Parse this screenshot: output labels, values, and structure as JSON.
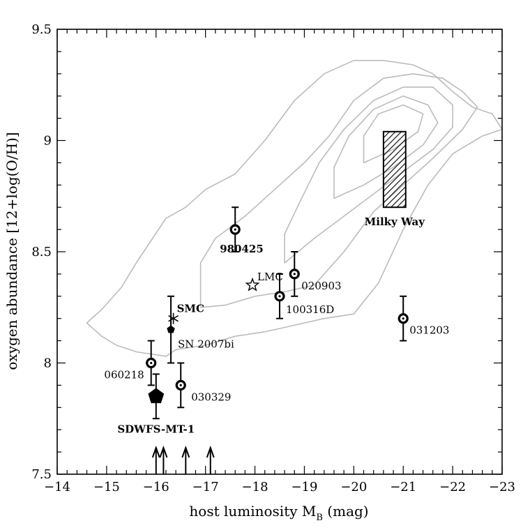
{
  "chart_data": {
    "type": "scatter",
    "xlabel": "host luminosity M",
    "xlabel_sub": "B",
    "xlabel_unit": " (mag)",
    "ylabel": "oxygen abundance [12+log(O/H)]",
    "xlim": [
      -14,
      -23
    ],
    "ylim": [
      7.5,
      9.5
    ],
    "x_ticks": [
      -14,
      -15,
      -16,
      -17,
      -18,
      -19,
      -20,
      -21,
      -22,
      -23
    ],
    "x_tick_labels": [
      "−14",
      "−15",
      "−16",
      "−17",
      "−18",
      "−19",
      "−20",
      "−21",
      "−22",
      "−23"
    ],
    "y_ticks": [
      7.5,
      8,
      8.5,
      9,
      9.5
    ],
    "y_tick_labels": [
      "7.5",
      "8",
      "8.5",
      "9",
      "9.5"
    ],
    "grid": false,
    "series": [
      {
        "marker": "circled-dot",
        "points": [
          {
            "label": "980425",
            "x": -17.6,
            "y": 8.6,
            "err": [
              8.5,
              8.7
            ]
          },
          {
            "label": "020903",
            "x": -18.8,
            "y": 8.4,
            "err": [
              8.3,
              8.5
            ]
          },
          {
            "label": "100316D",
            "x": -18.5,
            "y": 8.3,
            "err": [
              8.2,
              8.4
            ]
          },
          {
            "label": "031203",
            "x": -21.0,
            "y": 8.2,
            "err": [
              8.1,
              8.3
            ]
          },
          {
            "label": "060218",
            "x": -15.9,
            "y": 8.0,
            "err": [
              7.9,
              8.1
            ]
          },
          {
            "label": "030329",
            "x": -16.5,
            "y": 7.9,
            "err": [
              7.8,
              8.0
            ]
          }
        ]
      },
      {
        "marker": "open-star",
        "points": [
          {
            "label": "LMC",
            "x": -17.95,
            "y": 8.35
          }
        ]
      },
      {
        "marker": "asterisk",
        "points": [
          {
            "label": "SMC",
            "x": -16.35,
            "y": 8.2
          }
        ]
      },
      {
        "marker": "small-pentagon",
        "points": [
          {
            "label": "SN 2007bi",
            "x": -16.3,
            "y": 8.15,
            "err": [
              8.0,
              8.3
            ]
          }
        ]
      },
      {
        "marker": "large-pentagon",
        "points": [
          {
            "label": "SDWFS-MT-1",
            "x": -16.0,
            "y": 7.85,
            "err": [
              7.75,
              7.95
            ]
          }
        ]
      }
    ],
    "upper_limits_x": [
      -16.0,
      -16.15,
      -16.6,
      -17.1
    ],
    "milky_way": {
      "label": "Milky Way",
      "x_range": [
        -20.6,
        -21.05
      ],
      "y_range": [
        8.7,
        9.04
      ]
    },
    "contours": [
      {
        "level": 1,
        "points": [
          [
            -14.6,
            8.18
          ],
          [
            -14.9,
            8.12
          ],
          [
            -15.2,
            8.08
          ],
          [
            -15.6,
            8.05
          ],
          [
            -16.2,
            8.03
          ],
          [
            -16.4,
            8.06
          ],
          [
            -17.0,
            8.08
          ],
          [
            -17.6,
            8.12
          ],
          [
            -18.2,
            8.14
          ],
          [
            -18.6,
            8.16
          ],
          [
            -19.0,
            8.18
          ],
          [
            -19.4,
            8.2
          ],
          [
            -20.0,
            8.22
          ],
          [
            -20.5,
            8.36
          ],
          [
            -21.0,
            8.6
          ],
          [
            -21.5,
            8.8
          ],
          [
            -22.0,
            8.94
          ],
          [
            -22.6,
            9.02
          ],
          [
            -23.0,
            9.05
          ],
          [
            -22.8,
            9.12
          ],
          [
            -22.4,
            9.15
          ],
          [
            -22.0,
            9.22
          ],
          [
            -21.6,
            9.3
          ],
          [
            -21.2,
            9.34
          ],
          [
            -20.6,
            9.36
          ],
          [
            -20.0,
            9.36
          ],
          [
            -19.4,
            9.3
          ],
          [
            -18.8,
            9.18
          ],
          [
            -18.2,
            9.0
          ],
          [
            -17.6,
            8.85
          ],
          [
            -17.0,
            8.78
          ],
          [
            -16.6,
            8.7
          ],
          [
            -16.2,
            8.65
          ],
          [
            -15.9,
            8.55
          ],
          [
            -15.6,
            8.45
          ],
          [
            -15.3,
            8.34
          ],
          [
            -14.9,
            8.24
          ],
          [
            -14.6,
            8.18
          ]
        ]
      },
      {
        "level": 2,
        "points": [
          [
            -16.9,
            8.25
          ],
          [
            -17.4,
            8.26
          ],
          [
            -18.0,
            8.3
          ],
          [
            -18.6,
            8.32
          ],
          [
            -19.2,
            8.35
          ],
          [
            -19.8,
            8.5
          ],
          [
            -20.4,
            8.68
          ],
          [
            -21.0,
            8.8
          ],
          [
            -21.6,
            8.92
          ],
          [
            -22.2,
            9.05
          ],
          [
            -22.5,
            9.15
          ],
          [
            -22.2,
            9.22
          ],
          [
            -21.8,
            9.28
          ],
          [
            -21.2,
            9.3
          ],
          [
            -20.6,
            9.28
          ],
          [
            -20.0,
            9.18
          ],
          [
            -19.5,
            9.02
          ],
          [
            -19.0,
            8.9
          ],
          [
            -18.4,
            8.78
          ],
          [
            -17.8,
            8.66
          ],
          [
            -17.2,
            8.56
          ],
          [
            -16.9,
            8.45
          ],
          [
            -16.9,
            8.25
          ]
        ]
      },
      {
        "level": 3,
        "points": [
          [
            -18.6,
            8.45
          ],
          [
            -19.2,
            8.56
          ],
          [
            -19.8,
            8.66
          ],
          [
            -20.4,
            8.76
          ],
          [
            -21.0,
            8.86
          ],
          [
            -21.6,
            8.96
          ],
          [
            -22.0,
            9.06
          ],
          [
            -22.0,
            9.16
          ],
          [
            -21.6,
            9.24
          ],
          [
            -21.0,
            9.24
          ],
          [
            -20.4,
            9.18
          ],
          [
            -19.8,
            9.05
          ],
          [
            -19.3,
            8.9
          ],
          [
            -18.9,
            8.72
          ],
          [
            -18.6,
            8.58
          ],
          [
            -18.6,
            8.45
          ]
        ]
      },
      {
        "level": 4,
        "points": [
          [
            -19.6,
            8.74
          ],
          [
            -20.2,
            8.8
          ],
          [
            -20.8,
            8.88
          ],
          [
            -21.4,
            8.98
          ],
          [
            -21.7,
            9.08
          ],
          [
            -21.5,
            9.16
          ],
          [
            -21.0,
            9.2
          ],
          [
            -20.4,
            9.14
          ],
          [
            -19.9,
            9.02
          ],
          [
            -19.6,
            8.88
          ],
          [
            -19.6,
            8.74
          ]
        ]
      },
      {
        "level": 5,
        "points": [
          [
            -20.2,
            8.9
          ],
          [
            -20.8,
            8.96
          ],
          [
            -21.3,
            9.04
          ],
          [
            -21.4,
            9.12
          ],
          [
            -21.0,
            9.16
          ],
          [
            -20.5,
            9.12
          ],
          [
            -20.2,
            9.02
          ],
          [
            -20.2,
            8.9
          ]
        ]
      }
    ]
  }
}
